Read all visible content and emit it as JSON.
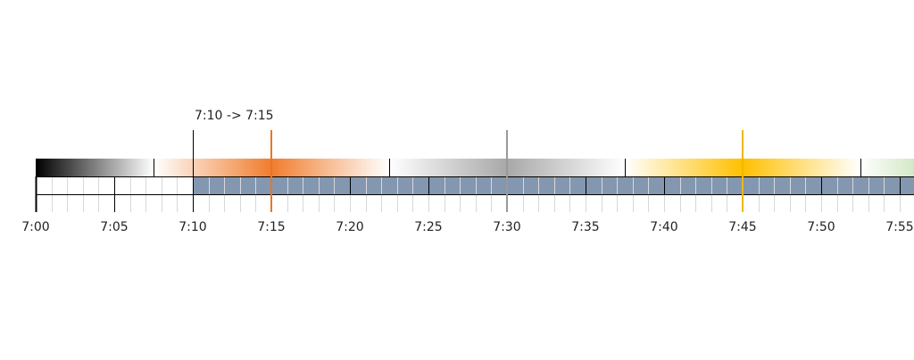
{
  "timeline": {
    "ticks": [
      "7:00",
      "7:05",
      "7:10",
      "7:15",
      "7:20",
      "7:25",
      "7:30",
      "7:35",
      "7:40",
      "7:45",
      "7:50",
      "7:55"
    ],
    "selection_label": "7:10 -> 7:15"
  }
}
